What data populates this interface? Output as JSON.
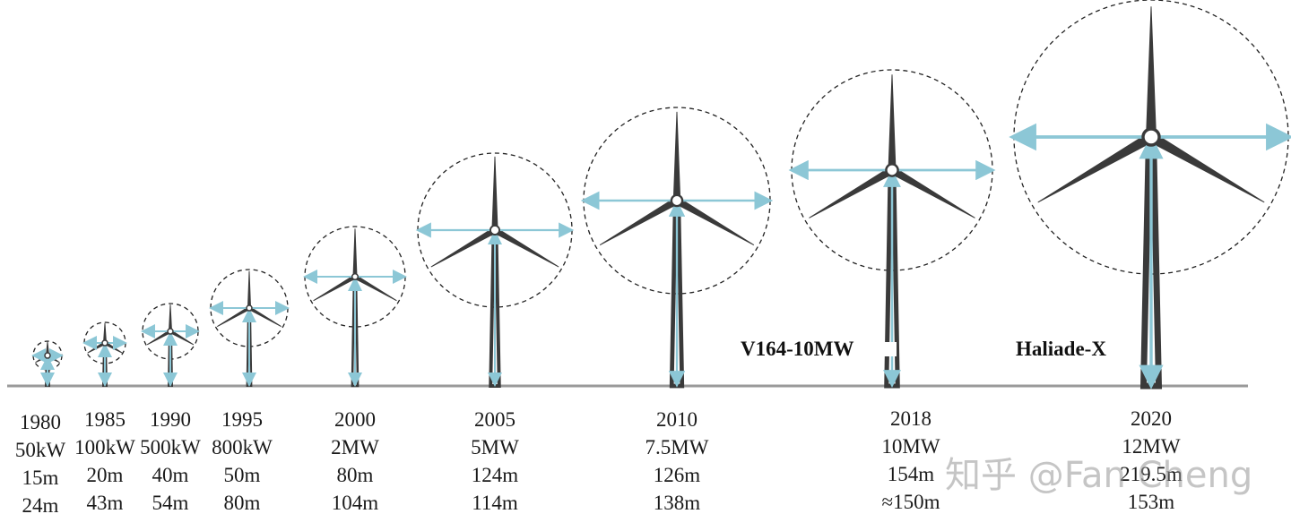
{
  "turbines": [
    {
      "year": "1980",
      "power": "50kW",
      "rotor": "15m",
      "height": "24m"
    },
    {
      "year": "1985",
      "power": "100kW",
      "rotor": "20m",
      "height": "43m"
    },
    {
      "year": "1990",
      "power": "500kW",
      "rotor": "40m",
      "height": "54m"
    },
    {
      "year": "1995",
      "power": "800kW",
      "rotor": "50m",
      "height": "80m"
    },
    {
      "year": "2000",
      "power": "2MW",
      "rotor": "80m",
      "height": "104m"
    },
    {
      "year": "2005",
      "power": "5MW",
      "rotor": "124m",
      "height": "114m"
    },
    {
      "year": "2010",
      "power": "7.5MW",
      "rotor": "126m",
      "height": "138m"
    },
    {
      "year": "2018",
      "power": "10MW",
      "rotor": "154m",
      "height": "≈150m",
      "model": "V164-10MW"
    },
    {
      "year": "2020",
      "power": "12MW",
      "rotor": "219.5m",
      "height": "153m",
      "model": "Haliade-X"
    }
  ],
  "watermark": "知乎 @Fan Cheng",
  "colors": {
    "tower": "#3a3a3a",
    "arrow": "#8cc7d6",
    "ground": "#9a9a9a",
    "circle": "#222222"
  }
}
